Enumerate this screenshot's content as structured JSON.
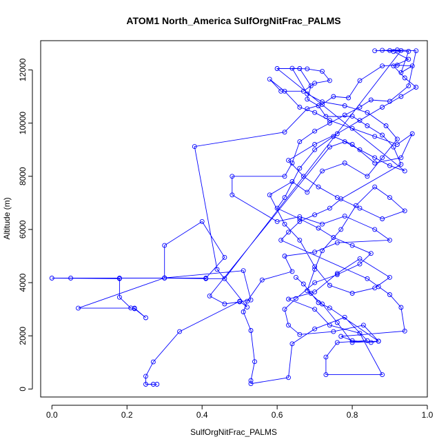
{
  "chart_data": {
    "type": "scatter",
    "title": "ATOM1 North_America SulfOrgNitFrac_PALMS",
    "xlabel": "SulfOrgNitFrac_PALMS",
    "ylabel": "Altitude (m)",
    "xlim": [
      -0.03,
      1.0
    ],
    "ylim": [
      -300,
      13100
    ],
    "xticks": [
      "0.0",
      "0.2",
      "0.4",
      "0.6",
      "0.8",
      "1.0"
    ],
    "xtick_values": [
      0,
      0.2,
      0.4,
      0.6,
      0.8,
      1.0
    ],
    "yticks": [
      "0",
      "2000",
      "4000",
      "6000",
      "8000",
      "10000",
      "12000"
    ],
    "ytick_values": [
      0,
      2000,
      4000,
      6000,
      8000,
      10000,
      12000
    ],
    "grid": false,
    "connected": true,
    "color": "#0000ff",
    "series": [
      {
        "points": [
          [
            0.27,
            180
          ],
          [
            0.28,
            180
          ],
          [
            0.25,
            180
          ],
          [
            0.25,
            480
          ],
          [
            0.27,
            1020
          ],
          [
            0.34,
            2160
          ],
          [
            0.5,
            3300
          ],
          [
            0.52,
            3080
          ],
          [
            0.44,
            4500
          ],
          [
            0.38,
            9120
          ],
          [
            0.62,
            9660
          ],
          [
            0.68,
            10540
          ],
          [
            0.72,
            10700
          ],
          [
            0.75,
            11000
          ],
          [
            0.79,
            10950
          ],
          [
            0.82,
            11600
          ],
          [
            0.88,
            12150
          ],
          [
            0.92,
            12180
          ],
          [
            0.96,
            12150
          ],
          [
            0.93,
            11900
          ],
          [
            0.95,
            12700
          ],
          [
            0.9,
            12730
          ],
          [
            0.86,
            12720
          ],
          [
            0.92,
            12750
          ],
          [
            0.97,
            12720
          ],
          [
            0.95,
            11400
          ],
          [
            0.9,
            10820
          ],
          [
            0.85,
            10870
          ],
          [
            0.82,
            10600
          ],
          [
            0.78,
            10300
          ],
          [
            0.74,
            10000
          ],
          [
            0.7,
            9700
          ],
          [
            0.66,
            9300
          ],
          [
            0.64,
            8500
          ],
          [
            0.62,
            8000
          ],
          [
            0.48,
            8000
          ],
          [
            0.48,
            7300
          ],
          [
            0.6,
            6300
          ],
          [
            0.66,
            6480
          ],
          [
            0.72,
            6200
          ],
          [
            0.78,
            6500
          ],
          [
            0.86,
            6000
          ],
          [
            0.9,
            5600
          ],
          [
            0.76,
            5500
          ],
          [
            0.7,
            5150
          ],
          [
            0.62,
            5000
          ],
          [
            0.64,
            4420
          ],
          [
            0.56,
            4100
          ],
          [
            0.52,
            3300
          ],
          [
            0.51,
            2900
          ],
          [
            0.53,
            2200
          ],
          [
            0.54,
            1030
          ],
          [
            0.53,
            320
          ],
          [
            0.53,
            200
          ],
          [
            0.63,
            430
          ],
          [
            0.64,
            1700
          ],
          [
            0.7,
            2260
          ],
          [
            0.78,
            2700
          ],
          [
            0.84,
            1820
          ],
          [
            0.76,
            1750
          ],
          [
            0.73,
            1200
          ],
          [
            0.73,
            540
          ],
          [
            0.88,
            540
          ],
          [
            0.82,
            2100
          ],
          [
            0.74,
            2400
          ],
          [
            0.7,
            3000
          ],
          [
            0.63,
            3380
          ],
          [
            0.7,
            3650
          ],
          [
            0.76,
            4350
          ],
          [
            0.82,
            4900
          ],
          [
            0.9,
            4200
          ],
          [
            0.86,
            3800
          ],
          [
            0.8,
            3600
          ],
          [
            0.74,
            3900
          ],
          [
            0.7,
            4600
          ],
          [
            0.66,
            5600
          ],
          [
            0.62,
            6200
          ],
          [
            0.58,
            7300
          ],
          [
            0.64,
            7800
          ],
          [
            0.68,
            7400
          ],
          [
            0.72,
            8200
          ],
          [
            0.78,
            8500
          ],
          [
            0.84,
            8000
          ],
          [
            0.88,
            8700
          ],
          [
            0.92,
            9400
          ],
          [
            0.89,
            9900
          ],
          [
            0.84,
            10400
          ],
          [
            0.78,
            10650
          ],
          [
            0.72,
            10800
          ],
          [
            0.68,
            11100
          ],
          [
            0.64,
            12060
          ],
          [
            0.68,
            12040
          ],
          [
            0.72,
            11950
          ],
          [
            0.74,
            11600
          ],
          [
            0.7,
            11500
          ],
          [
            0.67,
            11200
          ],
          [
            0.61,
            11200
          ],
          [
            0.58,
            11650
          ],
          [
            0.62,
            11200
          ],
          [
            0.66,
            10600
          ],
          [
            0.7,
            10400
          ],
          [
            0.74,
            10100
          ],
          [
            0.8,
            9800
          ],
          [
            0.86,
            9500
          ],
          [
            0.92,
            9200
          ],
          [
            0.96,
            9600
          ],
          [
            0.93,
            8700
          ],
          [
            0.86,
            8500
          ],
          [
            0.8,
            9200
          ],
          [
            0.75,
            9500
          ],
          [
            0.7,
            9000
          ],
          [
            0.66,
            8300
          ],
          [
            0.62,
            7200
          ],
          [
            0.6,
            6800
          ],
          [
            0.66,
            6400
          ],
          [
            0.71,
            6050
          ],
          [
            0.75,
            5700
          ],
          [
            0.8,
            5400
          ],
          [
            0.85,
            5100
          ],
          [
            0.82,
            4700
          ],
          [
            0.76,
            4300
          ],
          [
            0.7,
            4000
          ],
          [
            0.65,
            3400
          ],
          [
            0.62,
            3000
          ],
          [
            0.63,
            2400
          ],
          [
            0.66,
            2050
          ],
          [
            0.75,
            2160
          ],
          [
            0.83,
            2400
          ],
          [
            0.87,
            1800
          ],
          [
            0.8,
            1750
          ],
          [
            0.76,
            2500
          ],
          [
            0.72,
            3200
          ],
          [
            0.68,
            3700
          ],
          [
            0.7,
            4500
          ],
          [
            0.72,
            5200
          ],
          [
            0.77,
            6000
          ],
          [
            0.81,
            6900
          ],
          [
            0.86,
            7600
          ],
          [
            0.9,
            7200
          ],
          [
            0.94,
            6700
          ],
          [
            0.88,
            6400
          ],
          [
            0.82,
            6800
          ],
          [
            0.76,
            7200
          ],
          [
            0.71,
            7600
          ],
          [
            0.67,
            8000
          ],
          [
            0.63,
            8600
          ],
          [
            0.7,
            9200
          ],
          [
            0.76,
            9600
          ],
          [
            0.82,
            10100
          ],
          [
            0.88,
            10600
          ],
          [
            0.93,
            11000
          ],
          [
            0.97,
            11350
          ],
          [
            0.94,
            11700
          ],
          [
            0.91,
            12150
          ],
          [
            0.95,
            12400
          ],
          [
            0.91,
            12690
          ],
          [
            0.88,
            12740
          ],
          [
            0.93,
            12730
          ],
          [
            0.46,
            4150
          ],
          [
            0.41,
            4150
          ],
          [
            0.3,
            4170
          ],
          [
            0.18,
            4170
          ],
          [
            0.05,
            4170
          ],
          [
            0.0,
            4170
          ],
          [
            0.18,
            4150
          ],
          [
            0.18,
            3450
          ],
          [
            0.21,
            3050
          ],
          [
            0.22,
            3020
          ],
          [
            0.25,
            2680
          ],
          [
            0.22,
            3040
          ],
          [
            0.07,
            3040
          ],
          [
            0.3,
            4180
          ],
          [
            0.3,
            5400
          ],
          [
            0.4,
            6300
          ],
          [
            0.46,
            4950
          ],
          [
            0.41,
            4170
          ],
          [
            0.3,
            4180
          ],
          [
            0.51,
            4450
          ],
          [
            0.53,
            3350
          ],
          [
            0.5,
            3280
          ],
          [
            0.46,
            3200
          ],
          [
            0.42,
            3500
          ],
          [
            0.74,
            9100
          ],
          [
            0.78,
            9300
          ],
          [
            0.82,
            9000
          ],
          [
            0.86,
            8700
          ],
          [
            0.9,
            8400
          ],
          [
            0.94,
            8200
          ],
          [
            0.6,
            12050
          ],
          [
            0.66,
            12050
          ],
          [
            0.69,
            11400
          ],
          [
            0.68,
            10900
          ],
          [
            0.71,
            10650
          ],
          [
            0.73,
            10250
          ],
          [
            0.8,
            10260
          ],
          [
            0.84,
            9900
          ],
          [
            0.88,
            9550
          ],
          [
            0.91,
            9100
          ],
          [
            0.93,
            8450
          ],
          [
            0.77,
            7150
          ],
          [
            0.74,
            6800
          ],
          [
            0.7,
            6550
          ],
          [
            0.66,
            6300
          ],
          [
            0.63,
            5900
          ],
          [
            0.61,
            5600
          ],
          [
            0.84,
            4150
          ],
          [
            0.87,
            3850
          ],
          [
            0.9,
            3550
          ],
          [
            0.93,
            3070
          ],
          [
            0.94,
            2180
          ],
          [
            0.77,
            1980
          ],
          [
            0.8,
            1820
          ],
          [
            0.85,
            1750
          ],
          [
            0.87,
            1800
          ],
          [
            0.74,
            3050
          ],
          [
            0.71,
            3250
          ],
          [
            0.69,
            3600
          ],
          [
            0.67,
            3950
          ],
          [
            0.65,
            4200
          ]
        ]
      }
    ]
  }
}
